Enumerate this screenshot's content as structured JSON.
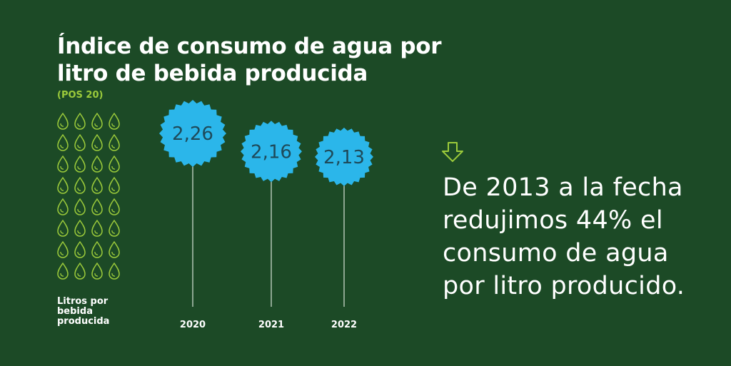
{
  "chart_data": {
    "type": "lollipop",
    "title": "Índice de consumo de agua por litro de bebida producida",
    "subtitle": "(POS 20)",
    "ylabel": "Litros por bebida producida",
    "categories": [
      "2020",
      "2021",
      "2022"
    ],
    "values": [
      2.26,
      2.16,
      2.13
    ],
    "value_labels": [
      "2,26",
      "2,16",
      "2,13"
    ],
    "grid": false,
    "colors": {
      "background": "#1c4a26",
      "bubble": "#2bb6ea",
      "value_text": "#1e4a5a",
      "accent": "#9ccb3b",
      "stem": "#d8e3d8"
    }
  },
  "decoration": {
    "icon": "water-drop-icon",
    "rows": 8,
    "cols": 4,
    "arrow_icon": "down-arrow-icon"
  },
  "highlight": {
    "text": "De 2013 a la fecha redujimos 44% el consumo de agua por litro producido."
  }
}
